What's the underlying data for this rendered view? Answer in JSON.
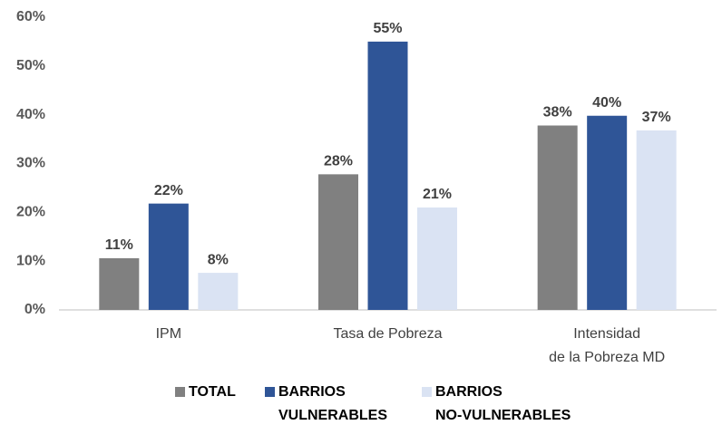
{
  "chart_data": {
    "type": "bar",
    "categories": [
      "IPM",
      "Tasa de Pobreza",
      "Intensidad\nde la Pobreza MD"
    ],
    "series": [
      {
        "name": "TOTAL",
        "color": "#808080",
        "values": [
          10.6,
          27.8,
          37.8
        ],
        "value_labels": [
          "11%",
          "28%",
          "38%"
        ]
      },
      {
        "name": "BARRIOS\nVULNERABLES",
        "color": "#2f5597",
        "values": [
          21.8,
          55,
          39.8
        ],
        "value_labels": [
          "22%",
          "55%",
          "40%"
        ]
      },
      {
        "name": "BARRIOS\nNO-VULNERABLES",
        "color": "#dae3f3",
        "values": [
          7.6,
          21,
          36.8
        ],
        "value_labels": [
          "8%",
          "21%",
          "37%"
        ]
      }
    ],
    "ylim": [
      0,
      60
    ],
    "yticks": [
      {
        "value": 0,
        "label": "0%"
      },
      {
        "value": 10,
        "label": "10%"
      },
      {
        "value": 20,
        "label": "20%"
      },
      {
        "value": 30,
        "label": "30%"
      },
      {
        "value": 40,
        "label": "40%"
      },
      {
        "value": 50,
        "label": "50%"
      },
      {
        "value": 60,
        "label": "60%"
      }
    ],
    "grid": false,
    "legend": "bottom"
  }
}
